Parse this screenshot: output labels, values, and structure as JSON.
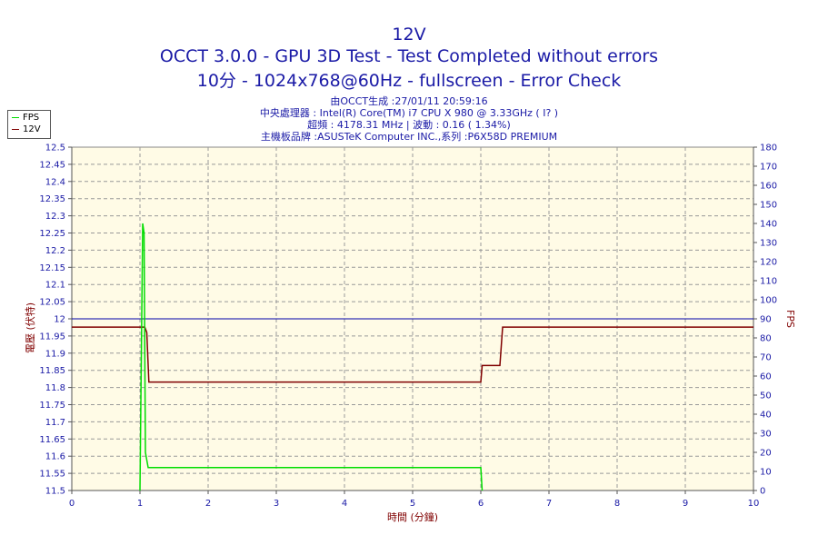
{
  "header": {
    "line1": "12V",
    "line2": "OCCT 3.0.0 - GPU 3D Test - Test Completed without errors",
    "line3": "10分 - 1024x768@60Hz - fullscreen - Error Check"
  },
  "info": {
    "line1": "由OCCT生成 :27/01/11 20:59:16",
    "line2": "中央處理器 : Intel(R) Core(TM) i7 CPU X 980 @ 3.33GHz (   I? )",
    "line3": "超頻 : 4178.31 MHz | 波動 : 0.16 ( 1.34%)",
    "line4": "主機板品牌 :ASUSTeK Computer INC.,系列 :P6X58D PREMIUM"
  },
  "legend": {
    "fps_label": "FPS",
    "v12_label": "12V"
  },
  "colors": {
    "fps": "#00dd00",
    "v12": "#800000",
    "reference": "#0000aa",
    "plot_bg": "#fffbe6",
    "text": "#1a1aa6"
  },
  "chart_data": {
    "type": "line",
    "xlabel": "時間 (分鐘)",
    "ylabel": "電壓 (伏特)",
    "y2label": "FPS",
    "xlim": [
      0,
      10
    ],
    "ylim": [
      11.5,
      12.5
    ],
    "y2lim": [
      0,
      180
    ],
    "x_ticks": [
      "0",
      "1",
      "2",
      "3",
      "4",
      "5",
      "6",
      "7",
      "8",
      "9",
      "10"
    ],
    "y_ticks": [
      "11.5",
      "11.55",
      "11.6",
      "11.65",
      "11.7",
      "11.75",
      "11.8",
      "11.85",
      "11.9",
      "11.95",
      "12",
      "12.05",
      "12.1",
      "12.15",
      "12.2",
      "12.25",
      "12.3",
      "12.35",
      "12.4",
      "12.45",
      "12.5"
    ],
    "y2_ticks": [
      "0",
      "10",
      "20",
      "30",
      "40",
      "50",
      "60",
      "70",
      "80",
      "90",
      "100",
      "110",
      "120",
      "130",
      "140",
      "150",
      "160",
      "170",
      "180"
    ],
    "grid": true,
    "legend_position": "top-left",
    "reference_line": 12.0,
    "series": [
      {
        "name": "12V",
        "axis": "left",
        "x": [
          0,
          1.07,
          1.1,
          1.13,
          6.0,
          6.02,
          6.28,
          6.32,
          10
        ],
        "y": [
          11.976,
          11.976,
          11.96,
          11.816,
          11.816,
          11.864,
          11.864,
          11.976,
          11.976
        ]
      },
      {
        "name": "FPS",
        "axis": "right",
        "x": [
          1.0,
          1.04,
          1.06,
          1.08,
          1.12,
          6.0,
          6.02
        ],
        "y": [
          0,
          140,
          135,
          20,
          12,
          12,
          0
        ]
      }
    ]
  }
}
